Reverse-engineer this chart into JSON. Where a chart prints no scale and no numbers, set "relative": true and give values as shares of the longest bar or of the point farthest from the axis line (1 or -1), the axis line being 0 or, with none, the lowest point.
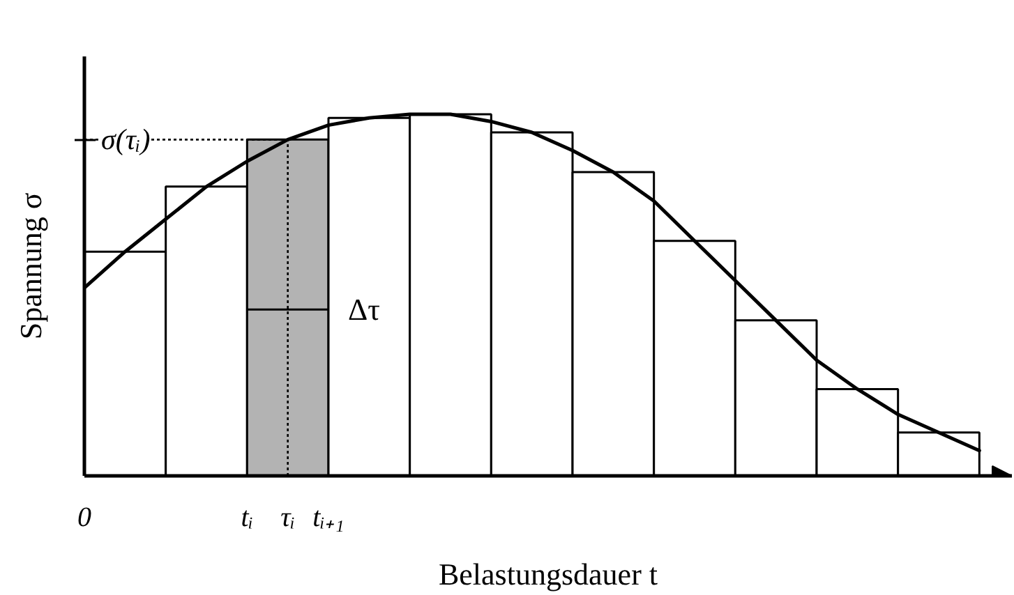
{
  "chart_data": {
    "type": "bar",
    "relative": true,
    "xlabel": "Belastungsdauer t",
    "ylabel": "Spannung σ",
    "categories": [
      "0",
      null,
      null,
      null,
      "tᵢ",
      "τᵢ",
      "tᵢ₊₁",
      null,
      null,
      null,
      null,
      null,
      null,
      null,
      null,
      null,
      null,
      null,
      null,
      null,
      null,
      null,
      null
    ],
    "series": [
      {
        "values": [
          null,
          0.62,
          null,
          0.8,
          null,
          0.93,
          null,
          0.99,
          null,
          1.0,
          null,
          0.95,
          null,
          0.84,
          null,
          0.65,
          null,
          0.43,
          null,
          0.24,
          null,
          0.12,
          null
        ],
        "colors": [
          null,
          "#ffffff",
          null,
          "#ffffff",
          null,
          "#b3b3b3",
          null,
          "#ffffff",
          null,
          "#ffffff",
          null,
          "#ffffff",
          null,
          "#ffffff",
          null,
          "#ffffff",
          null,
          "#ffffff",
          null,
          "#ffffff",
          null,
          "#ffffff",
          null
        ]
      },
      {
        "type": "line",
        "color": "#000000",
        "values": [
          0.52,
          0.62,
          0.71,
          0.8,
          0.87,
          0.93,
          0.97,
          0.99,
          1.0,
          1.0,
          0.98,
          0.95,
          0.9,
          0.84,
          0.76,
          0.65,
          0.54,
          0.43,
          0.32,
          0.24,
          0.17,
          0.12,
          0.07
        ]
      }
    ],
    "ref_lines": [
      {
        "axis": "y",
        "value": 0.93,
        "label": "σ(τᵢ)",
        "line_style": "dotted"
      },
      {
        "axis": "x",
        "value": "τᵢ",
        "line_style": "dotted"
      }
    ],
    "annotations": [
      {
        "text": "Δτ",
        "x": "tᵢ₊₁",
        "y": 0.46
      }
    ]
  }
}
